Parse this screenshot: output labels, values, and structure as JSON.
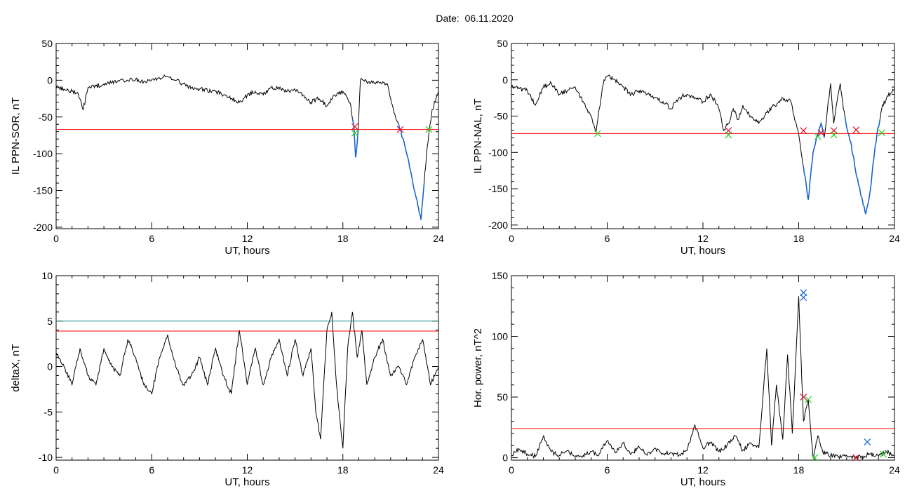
{
  "header": {
    "date_label": "Date:",
    "date_value": "06.11.2020"
  },
  "colors": {
    "threshold_red": "#ff0000",
    "threshold_teal": "#1a8a8a",
    "marker_red": "#e0102a",
    "marker_green": "#22cc22",
    "marker_blue": "#1060d0",
    "trace_blue": "#1060d0",
    "trace": "#000000"
  },
  "chart_data": [
    {
      "type": "line",
      "xlabel": "UT, hours",
      "ylabel": "IL PPN-SOR, nT",
      "xlim": [
        0,
        24
      ],
      "ylim": [
        -202,
        50
      ],
      "xticks": [
        0,
        6,
        12,
        18,
        24
      ],
      "yticks": [
        50,
        0,
        -50,
        -100,
        -150,
        -200
      ],
      "threshold": -67,
      "x": [
        0,
        0.5,
        1,
        1.4,
        1.7,
        2,
        2.5,
        3,
        3.5,
        4,
        4.5,
        5,
        5.5,
        6,
        6.5,
        7,
        7.5,
        8,
        8.5,
        9,
        9.5,
        10,
        10.5,
        11,
        11.5,
        12,
        12.5,
        13,
        13.5,
        14,
        14.5,
        15,
        15.5,
        16,
        16.5,
        17,
        17.5,
        18,
        18.3,
        18.5,
        18.7,
        18.8,
        18.95,
        19.1,
        19.3,
        19.6,
        20,
        20.5,
        20.8,
        21,
        21.3,
        21.6,
        21.9,
        22.2,
        22.5,
        22.7,
        22.9,
        23.1,
        23.3,
        23.6,
        24
      ],
      "y": [
        -10,
        -12,
        -15,
        -20,
        -40,
        -10,
        -8,
        -5,
        -3,
        0,
        0,
        2,
        -2,
        1,
        3,
        5,
        0,
        -5,
        -10,
        -12,
        -14,
        -15,
        -20,
        -25,
        -30,
        -20,
        -15,
        -20,
        -10,
        -12,
        -15,
        -13,
        -20,
        -30,
        -25,
        -35,
        -20,
        -15,
        -25,
        -35,
        -65,
        -105,
        -70,
        0,
        0,
        -2,
        -5,
        -2,
        -5,
        -25,
        -50,
        -68,
        -90,
        -120,
        -150,
        -170,
        -190,
        -140,
        -90,
        -40,
        -15
      ],
      "blue_segments": [
        [
          18.6,
          18.95
        ],
        [
          21.5,
          23.1
        ]
      ],
      "markers": [
        {
          "x": 18.75,
          "y": -63,
          "color": "red"
        },
        {
          "x": 18.75,
          "y": -72,
          "color": "green"
        },
        {
          "x": 21.6,
          "y": -67,
          "color": "red"
        },
        {
          "x": 23.4,
          "y": -67,
          "color": "green"
        }
      ]
    },
    {
      "type": "line",
      "xlabel": "UT, hours",
      "ylabel": "IL PPN-NAL, nT",
      "xlim": [
        0,
        24
      ],
      "ylim": [
        -205,
        50
      ],
      "xticks": [
        0,
        6,
        12,
        18,
        24
      ],
      "yticks": [
        50,
        0,
        -50,
        -100,
        -150,
        -200
      ],
      "threshold": -74,
      "x": [
        0,
        0.5,
        1,
        1.5,
        2,
        2.5,
        3,
        3.5,
        4,
        4.5,
        5,
        5.3,
        5.5,
        5.8,
        6,
        6.5,
        7,
        7.5,
        8,
        8.5,
        9,
        9.5,
        10,
        10.5,
        11,
        11.5,
        12,
        12.5,
        13,
        13.3,
        13.6,
        13.9,
        14.2,
        14.5,
        15,
        15.5,
        16,
        16.5,
        17,
        17.5,
        18,
        18.3,
        18.6,
        18.9,
        19.2,
        19.4,
        19.6,
        19.8,
        20,
        20.2,
        20.4,
        20.6,
        20.8,
        21,
        21.3,
        21.6,
        21.9,
        22.2,
        22.5,
        22.7,
        22.9,
        23.2,
        23.5,
        24
      ],
      "y": [
        -10,
        -12,
        -15,
        -35,
        -10,
        -5,
        -20,
        -15,
        -10,
        -30,
        -50,
        -72,
        -40,
        0,
        5,
        0,
        -10,
        -20,
        -15,
        -20,
        -25,
        -30,
        -40,
        -25,
        -20,
        -25,
        -30,
        -20,
        -40,
        -70,
        -60,
        -40,
        -55,
        -35,
        -50,
        -60,
        -45,
        -35,
        -25,
        -30,
        -75,
        -120,
        -165,
        -100,
        -75,
        -60,
        -80,
        -40,
        -5,
        -60,
        -30,
        -5,
        -40,
        -65,
        -90,
        -130,
        -160,
        -185,
        -150,
        -110,
        -75,
        -40,
        -25,
        -12
      ],
      "blue_segments": [
        [
          18.3,
          19.6
        ],
        [
          20.9,
          23.1
        ]
      ],
      "markers": [
        {
          "x": 5.4,
          "y": -74,
          "color": "green"
        },
        {
          "x": 13.6,
          "y": -70,
          "color": "red"
        },
        {
          "x": 13.6,
          "y": -76,
          "color": "green"
        },
        {
          "x": 18.3,
          "y": -70,
          "color": "red"
        },
        {
          "x": 19.2,
          "y": -78,
          "color": "green"
        },
        {
          "x": 19.4,
          "y": -73,
          "color": "red"
        },
        {
          "x": 20.2,
          "y": -70,
          "color": "red"
        },
        {
          "x": 20.2,
          "y": -76,
          "color": "green"
        },
        {
          "x": 21.6,
          "y": -69,
          "color": "red"
        },
        {
          "x": 23.2,
          "y": -73,
          "color": "green"
        }
      ]
    },
    {
      "type": "line",
      "xlabel": "UT, hours",
      "ylabel": "deltaX, nT",
      "xlim": [
        0,
        24
      ],
      "ylim": [
        -10.3,
        10
      ],
      "xticks": [
        0,
        6,
        12,
        18,
        24
      ],
      "yticks": [
        10,
        5,
        0,
        -5,
        -10
      ],
      "thresholds": [
        {
          "value": 5,
          "color": "teal"
        },
        {
          "value": 3.9,
          "color": "red"
        }
      ],
      "x": [
        0,
        0.5,
        1,
        1.5,
        2,
        2.5,
        3,
        3.5,
        4,
        4.5,
        5,
        5.5,
        6,
        6.5,
        7,
        7.5,
        8,
        8.5,
        9,
        9.5,
        10,
        10.5,
        11,
        11.5,
        12,
        12.5,
        13,
        13.5,
        14,
        14.5,
        15,
        15.5,
        16,
        16.3,
        16.6,
        17,
        17.3,
        17.6,
        18,
        18.3,
        18.6,
        18.9,
        19.2,
        19.5,
        20,
        20.5,
        21,
        21.5,
        22,
        22.5,
        23,
        23.5,
        24
      ],
      "y": [
        1.5,
        0,
        -2,
        2,
        -1,
        -2,
        2,
        0,
        -1,
        3,
        1,
        -2,
        -3,
        1,
        3.5,
        0,
        -2,
        -1,
        1,
        -2,
        2,
        -1,
        -3,
        4,
        -2,
        2,
        -2,
        1,
        3,
        -1,
        3,
        -1,
        2,
        -5,
        -8,
        4,
        6,
        -2,
        -9,
        2,
        6,
        1,
        4,
        -2,
        1,
        3,
        -1,
        0,
        -2,
        1,
        3,
        -2,
        0
      ],
      "markers": []
    },
    {
      "type": "line",
      "xlabel": "UT, hours",
      "ylabel": "Hor. power, nT^2",
      "xlim": [
        0,
        24
      ],
      "ylim": [
        -2,
        150
      ],
      "xticks": [
        0,
        6,
        12,
        18,
        24
      ],
      "yticks": [
        150,
        100,
        50,
        0
      ],
      "threshold": 24,
      "x": [
        0,
        0.5,
        1,
        1.5,
        2,
        2.5,
        3,
        3.5,
        4,
        4.5,
        5,
        5.5,
        6,
        6.5,
        7,
        7.5,
        8,
        8.5,
        9,
        9.5,
        10,
        10.5,
        11,
        11.5,
        12,
        12.5,
        13,
        13.5,
        14,
        14.5,
        15,
        15.5,
        16,
        16.3,
        16.6,
        17,
        17.3,
        17.6,
        18,
        18.3,
        18.6,
        18.9,
        19.2,
        19.5,
        20,
        20.5,
        21,
        21.5,
        22,
        22.5,
        23,
        23.5,
        24
      ],
      "y": [
        2,
        7,
        3,
        1,
        18,
        5,
        2,
        6,
        1,
        2,
        5,
        3,
        14,
        4,
        12,
        3,
        9,
        2,
        8,
        3,
        4,
        2,
        6,
        27,
        8,
        13,
        5,
        10,
        18,
        6,
        12,
        8,
        90,
        10,
        60,
        15,
        85,
        20,
        133,
        30,
        48,
        0,
        18,
        5,
        2,
        1,
        2,
        0,
        1,
        3,
        1,
        5,
        1
      ],
      "markers": [
        {
          "x": 18.3,
          "y": 136,
          "color": "blue"
        },
        {
          "x": 18.3,
          "y": 132,
          "color": "blue"
        },
        {
          "x": 18.3,
          "y": 50,
          "color": "red"
        },
        {
          "x": 18.6,
          "y": 48,
          "color": "green"
        },
        {
          "x": 19.0,
          "y": 0,
          "color": "green"
        },
        {
          "x": 21.6,
          "y": 0,
          "color": "red"
        },
        {
          "x": 22.3,
          "y": 13,
          "color": "blue"
        },
        {
          "x": 23.3,
          "y": 3,
          "color": "green"
        }
      ]
    }
  ]
}
